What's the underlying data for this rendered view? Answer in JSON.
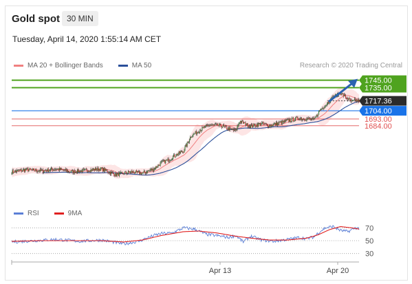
{
  "header": {
    "title": "Gold spot",
    "timeframe": "30 MIN"
  },
  "timestamp": "Tuesday, April 14, 2020 1:55:14 AM CET",
  "legend_top": [
    {
      "label": "MA 20 + Bollinger Bands",
      "color": "#f08080"
    },
    {
      "label": "MA 50",
      "color": "#2a4f9a"
    }
  ],
  "credit": "Research © 2020 Trading Central",
  "legend_rsi": [
    {
      "label": "RSI",
      "color": "#5b7fd6"
    },
    {
      "label": "9MA",
      "color": "#e02020"
    }
  ],
  "colors": {
    "resistance": "#4fa31e",
    "pivot": "#1a73e8",
    "support": "#e05050",
    "last_price_tag": "#2b2b2b",
    "arrow": "#2a62b0",
    "bollinger_fill": "#fde0e0",
    "ma20": "#f08080",
    "ma50": "#2a4f9a"
  },
  "chart_data": {
    "type": "candlestick",
    "instrument": "Gold spot",
    "interval": "30 MIN",
    "ylim": [
      1585,
      1765
    ],
    "x_ticks": [
      "Apr 13",
      "Apr 20"
    ],
    "levels": [
      {
        "value": 1745.0,
        "label": "1745.00",
        "kind": "resistance"
      },
      {
        "value": 1735.0,
        "label": "1735.00",
        "kind": "resistance"
      },
      {
        "value": 1717.36,
        "label": "1717.36",
        "kind": "last"
      },
      {
        "value": 1704.0,
        "label": "1704.00",
        "kind": "pivot"
      },
      {
        "value": 1693.0,
        "label": "1693.00",
        "kind": "support"
      },
      {
        "value": 1684.0,
        "label": "1684.00",
        "kind": "support"
      }
    ],
    "anchors_price": [
      [
        0,
        1622
      ],
      [
        20,
        1625
      ],
      [
        40,
        1623
      ],
      [
        60,
        1626
      ],
      [
        80,
        1622
      ],
      [
        100,
        1624
      ],
      [
        120,
        1626
      ],
      [
        140,
        1618
      ],
      [
        160,
        1622
      ],
      [
        175,
        1620
      ],
      [
        190,
        1626
      ],
      [
        200,
        1634
      ],
      [
        210,
        1638
      ],
      [
        220,
        1645
      ],
      [
        230,
        1650
      ],
      [
        240,
        1670
      ],
      [
        255,
        1680
      ],
      [
        265,
        1685
      ],
      [
        280,
        1684
      ],
      [
        290,
        1680
      ],
      [
        300,
        1677
      ],
      [
        305,
        1690
      ],
      [
        320,
        1683
      ],
      [
        335,
        1687
      ],
      [
        345,
        1684
      ],
      [
        360,
        1688
      ],
      [
        375,
        1692
      ],
      [
        385,
        1694
      ],
      [
        395,
        1693
      ],
      [
        405,
        1692
      ],
      [
        412,
        1704
      ],
      [
        420,
        1712
      ],
      [
        430,
        1722
      ],
      [
        440,
        1728
      ],
      [
        450,
        1720
      ],
      [
        455,
        1716
      ],
      [
        460,
        1718
      ],
      [
        465,
        1717
      ]
    ],
    "rsi": {
      "levels": [
        70,
        50,
        30
      ],
      "anchors": [
        [
          0,
          48
        ],
        [
          30,
          50
        ],
        [
          60,
          52
        ],
        [
          90,
          49
        ],
        [
          120,
          51
        ],
        [
          150,
          45
        ],
        [
          170,
          49
        ],
        [
          190,
          58
        ],
        [
          200,
          61
        ],
        [
          215,
          62
        ],
        [
          230,
          70
        ],
        [
          245,
          68
        ],
        [
          260,
          60
        ],
        [
          280,
          57
        ],
        [
          290,
          55
        ],
        [
          300,
          58
        ],
        [
          310,
          48
        ],
        [
          320,
          57
        ],
        [
          335,
          51
        ],
        [
          350,
          49
        ],
        [
          370,
          52
        ],
        [
          385,
          55
        ],
        [
          395,
          53
        ],
        [
          405,
          56
        ],
        [
          410,
          62
        ],
        [
          420,
          70
        ],
        [
          430,
          72
        ],
        [
          440,
          66
        ],
        [
          450,
          64
        ],
        [
          460,
          70
        ],
        [
          465,
          69
        ]
      ],
      "ma9_anchors": [
        [
          0,
          49
        ],
        [
          40,
          50
        ],
        [
          80,
          50
        ],
        [
          120,
          50
        ],
        [
          150,
          48
        ],
        [
          175,
          51
        ],
        [
          200,
          58
        ],
        [
          230,
          64
        ],
        [
          250,
          65
        ],
        [
          275,
          62
        ],
        [
          300,
          57
        ],
        [
          320,
          54
        ],
        [
          345,
          51
        ],
        [
          370,
          51
        ],
        [
          395,
          54
        ],
        [
          410,
          59
        ],
        [
          425,
          67
        ],
        [
          440,
          72
        ],
        [
          455,
          70
        ],
        [
          465,
          68
        ]
      ]
    }
  }
}
